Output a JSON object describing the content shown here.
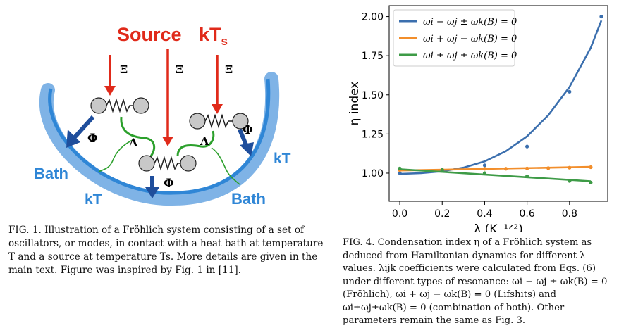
{
  "fig1": {
    "source_label": "Source",
    "source_temp": "kT",
    "source_temp_sub": "s",
    "xi": "Ξ",
    "phi": "Φ",
    "lambda": "Λ",
    "bath_label": "Bath",
    "kt_label": "kT",
    "colors": {
      "red": "#e02a1a",
      "navy": "#1f4e9c",
      "green": "#2ca02c",
      "bath": "#2f86d6"
    },
    "caption": {
      "fig": "FIG. 1.",
      "text": "Illustration of a Fröhlich system consisting of a set of oscillators, or modes, in contact with a heat bath at temperature T and a source at temperature Ts. More details are given in the main text. Figure was inspired by Fig. 1 in [11]."
    }
  },
  "chart_data": {
    "type": "line",
    "xlabel": "λ (K⁻¹ᐟ²)",
    "ylabel": "η index",
    "xlim": [
      -0.05,
      0.98
    ],
    "ylim": [
      0.82,
      2.07
    ],
    "xticks": [
      0.0,
      0.2,
      0.4,
      0.6,
      0.8
    ],
    "yticks": [
      1.0,
      1.25,
      1.5,
      1.75,
      2.0
    ],
    "xtick_labels": [
      "0.0",
      "0.2",
      "0.4",
      "0.6",
      "0.8"
    ],
    "ytick_labels": [
      "1.00",
      "1.25",
      "1.50",
      "1.75",
      "2.00"
    ],
    "legend_position": "top-left",
    "series": [
      {
        "name": "ωi − ωj ± ωk(B) = 0",
        "color": "#3b6fae",
        "points": [
          [
            0.0,
            1.0
          ],
          [
            0.2,
            1.02
          ],
          [
            0.4,
            1.05
          ],
          [
            0.6,
            1.17
          ],
          [
            0.8,
            1.52
          ],
          [
            0.95,
            2.0
          ]
        ],
        "fit": [
          [
            0.0,
            0.995
          ],
          [
            0.1,
            1.0
          ],
          [
            0.2,
            1.012
          ],
          [
            0.3,
            1.035
          ],
          [
            0.4,
            1.075
          ],
          [
            0.5,
            1.14
          ],
          [
            0.6,
            1.235
          ],
          [
            0.7,
            1.37
          ],
          [
            0.8,
            1.55
          ],
          [
            0.9,
            1.8
          ],
          [
            0.95,
            1.975
          ]
        ]
      },
      {
        "name": "ωi + ωj − ωk(B) = 0",
        "color": "#f28e2b",
        "points": [
          [
            0.0,
            1.02
          ],
          [
            0.2,
            1.022
          ],
          [
            0.4,
            1.028
          ],
          [
            0.5,
            1.028
          ],
          [
            0.6,
            1.03
          ],
          [
            0.7,
            1.032
          ],
          [
            0.8,
            1.035
          ],
          [
            0.9,
            1.038
          ]
        ],
        "fit": [
          [
            0.0,
            1.017
          ],
          [
            0.9,
            1.04
          ]
        ]
      },
      {
        "name": "ωi ± ωj ± ωk(B) = 0",
        "color": "#3e9b47",
        "points": [
          [
            0.0,
            1.03
          ],
          [
            0.2,
            1.02
          ],
          [
            0.4,
            1.0
          ],
          [
            0.6,
            0.98
          ],
          [
            0.8,
            0.95
          ],
          [
            0.9,
            0.94
          ]
        ],
        "fit": [
          [
            0.0,
            1.025
          ],
          [
            0.9,
            0.948
          ]
        ]
      }
    ]
  },
  "fig4": {
    "caption": {
      "fig": "FIG. 4.",
      "text": "Condensation index η of a Fröhlich system as deduced from Hamiltonian dynamics for different λ values. λijk coefficients were calculated from Eqs. (6) under different types of resonance: ωi − ωj ± ωk(B) = 0 (Fröhlich), ωi + ωj − ωk(B) = 0 (Lifshits) and ωi±ωj±ωk(B) = 0 (combination of both). Other parameters remain the same as Fig. 3."
    }
  }
}
